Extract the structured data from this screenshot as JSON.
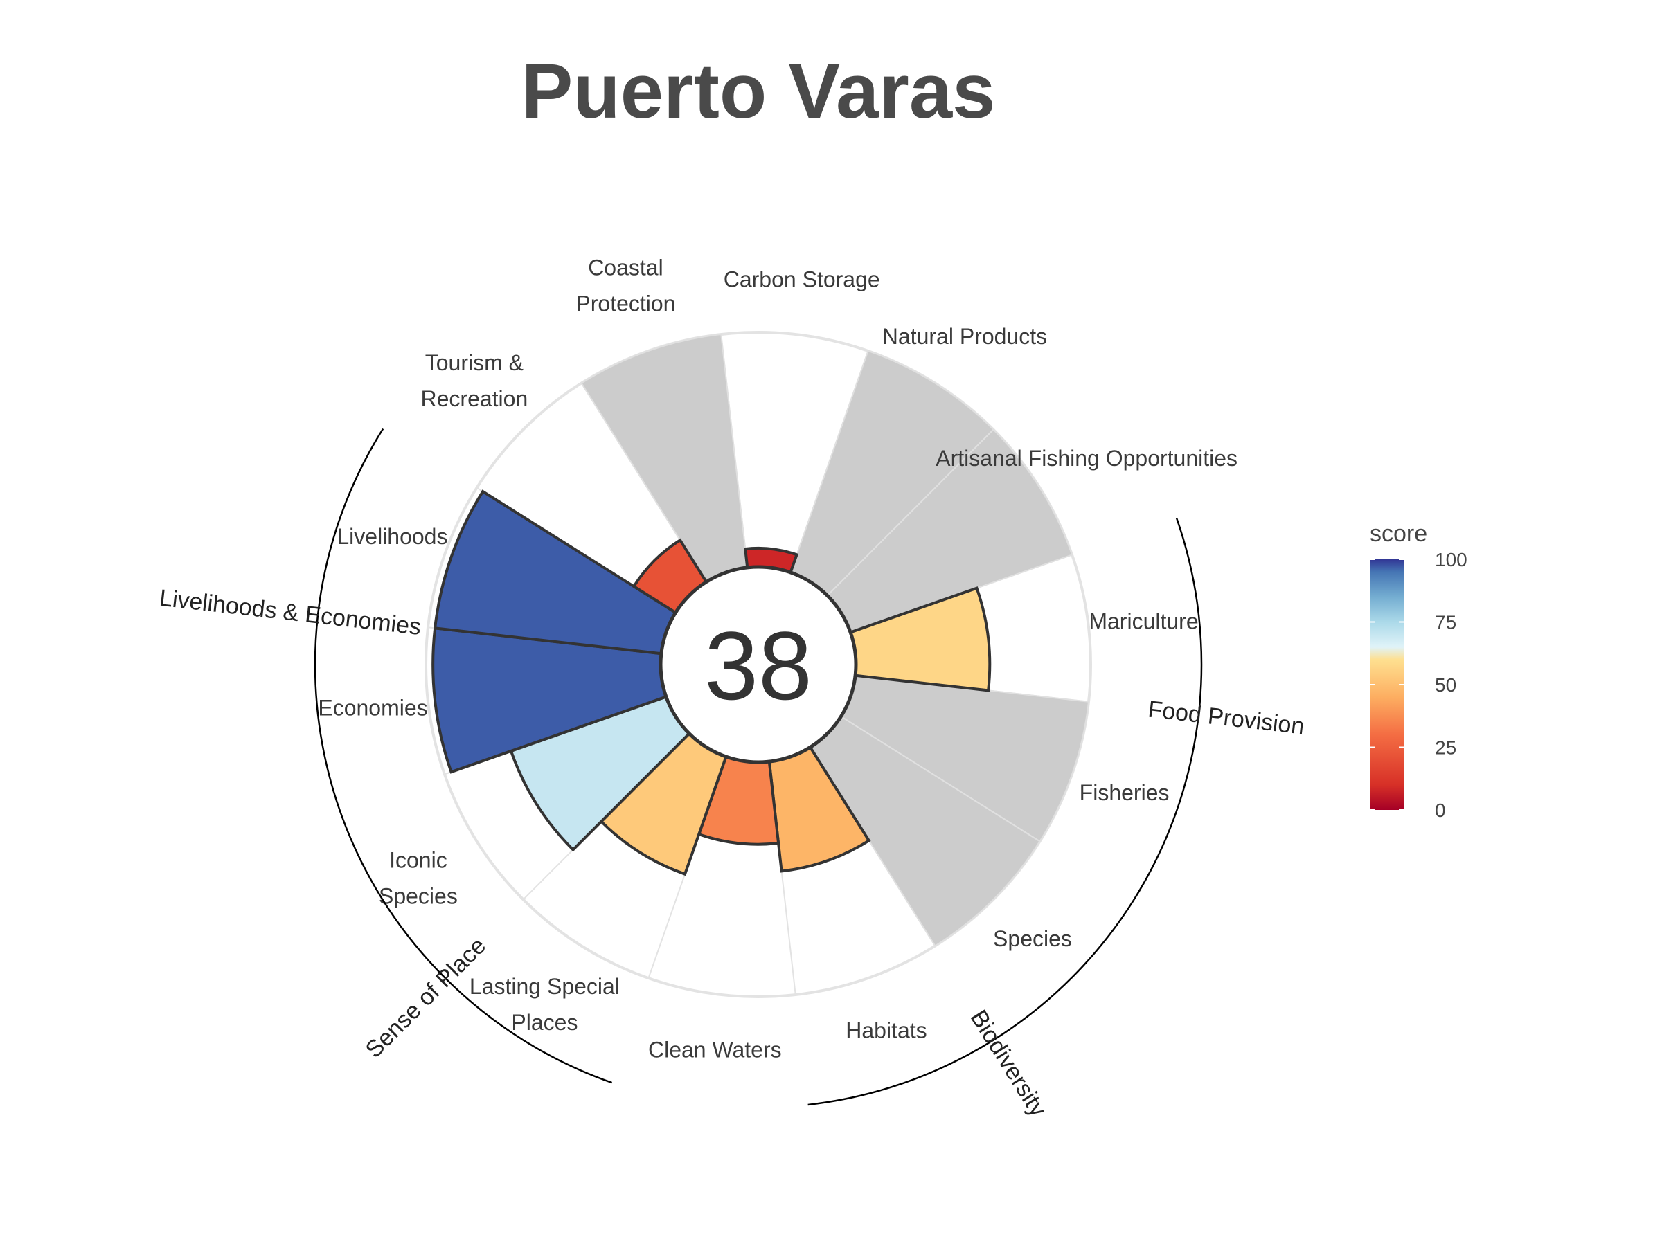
{
  "chart_data": {
    "type": "rose",
    "title": "Puerto Varas",
    "center_score": "38",
    "max": 100,
    "categories": [
      {
        "label": [
          "Artisanal Fishing Opportunities"
        ],
        "value": null
      },
      {
        "label": [
          "Mariculture"
        ],
        "value": 57
      },
      {
        "label": [
          "Fisheries"
        ],
        "value": null
      },
      {
        "label": [
          "Species"
        ],
        "value": null
      },
      {
        "label": [
          "Habitats"
        ],
        "value": 47
      },
      {
        "label": [
          "Clean Waters"
        ],
        "value": 35
      },
      {
        "label": [
          "Lasting Special",
          "Places"
        ],
        "value": 53
      },
      {
        "label": [
          "Iconic",
          "Species"
        ],
        "value": 70
      },
      {
        "label": [
          "Economies"
        ],
        "value": 97
      },
      {
        "label": [
          "Livelihoods"
        ],
        "value": 97
      },
      {
        "label": [
          "Tourism &",
          "Recreation"
        ],
        "value": 21
      },
      {
        "label": [
          "Coastal",
          "Protection"
        ],
        "value": null
      },
      {
        "label": [
          "Carbon Storage"
        ],
        "value": 8
      },
      {
        "label": [
          "Natural Products"
        ],
        "value": null
      }
    ],
    "groups": [
      {
        "name": "Food Provision"
      },
      {
        "name": "Biodiversity"
      },
      {
        "name": "Sense of Place"
      },
      {
        "name": "Livelihoods & Economies"
      }
    ],
    "legend": {
      "title": "score",
      "ticks": [
        "100",
        "75",
        "50",
        "25",
        "0"
      ]
    },
    "colors": {
      "na_fill": "#cccccc",
      "outline": "#333333",
      "ring": "#e3e3e3"
    }
  }
}
